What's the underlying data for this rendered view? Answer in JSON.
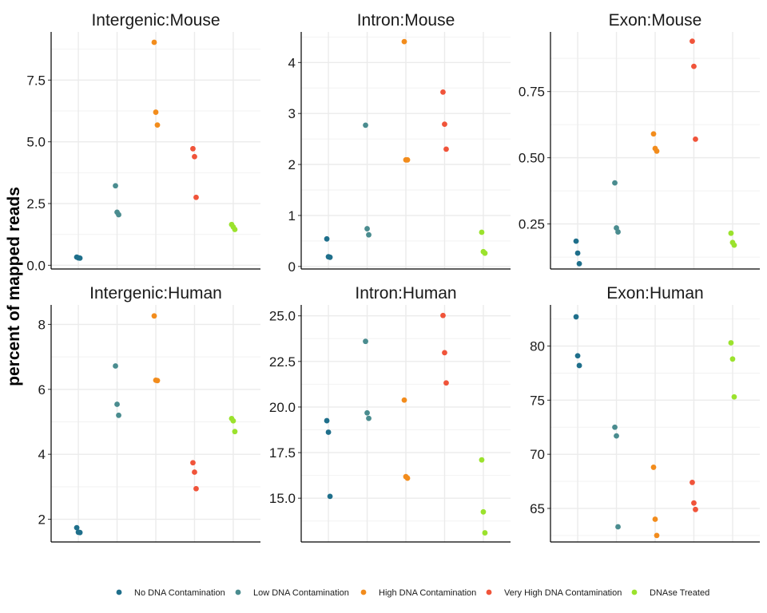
{
  "chart_data": {
    "type": "scatter",
    "ylabel": "percent of mapped reads",
    "legend": {
      "position": "bottom",
      "entries": [
        {
          "name": "No DNA Contamination",
          "color": "#1f6f8b"
        },
        {
          "name": "Low DNA Contamination",
          "color": "#4a8c8f"
        },
        {
          "name": "High DNA Contamination",
          "color": "#f28c1c"
        },
        {
          "name": "Very High DNA Contamination",
          "color": "#f0543a"
        },
        {
          "name": "DNAse Treated",
          "color": "#9be22d"
        }
      ]
    },
    "grid": true,
    "panels": [
      {
        "title": "Intergenic:Mouse",
        "ylim": [
          -0.15,
          9.45
        ],
        "yticks": [
          0.0,
          2.5,
          5.0,
          7.5
        ],
        "yticklabels": [
          "0.0",
          "2.5",
          "5.0",
          "7.5"
        ],
        "series": [
          {
            "name": "No DNA Contamination",
            "values": [
              0.33,
              0.3,
              0.29
            ]
          },
          {
            "name": "Low DNA Contamination",
            "values": [
              3.22,
              2.15,
              2.05
            ]
          },
          {
            "name": "High DNA Contamination",
            "values": [
              9.03,
              6.2,
              5.68
            ]
          },
          {
            "name": "Very High DNA Contamination",
            "values": [
              4.72,
              4.4,
              2.75
            ]
          },
          {
            "name": "DNAse Treated",
            "values": [
              1.65,
              1.55,
              1.45
            ]
          }
        ]
      },
      {
        "title": "Intron:Mouse",
        "ylim": [
          -0.05,
          4.6
        ],
        "yticks": [
          0,
          1,
          2,
          3,
          4
        ],
        "yticklabels": [
          "0",
          "1",
          "2",
          "3",
          "4"
        ],
        "series": [
          {
            "name": "No DNA Contamination",
            "values": [
              0.54,
              0.19,
              0.18
            ]
          },
          {
            "name": "Low DNA Contamination",
            "values": [
              2.77,
              0.74,
              0.62
            ]
          },
          {
            "name": "High DNA Contamination",
            "values": [
              4.41,
              2.09,
              2.09
            ]
          },
          {
            "name": "Very High DNA Contamination",
            "values": [
              3.42,
              2.79,
              2.3
            ]
          },
          {
            "name": "DNAse Treated",
            "values": [
              0.67,
              0.29,
              0.26
            ]
          }
        ]
      },
      {
        "title": "Exon:Mouse",
        "ylim": [
          0.08,
          0.975
        ],
        "yticks": [
          0.25,
          0.5,
          0.75
        ],
        "yticklabels": [
          "0.25",
          "0.50",
          "0.75"
        ],
        "series": [
          {
            "name": "No DNA Contamination",
            "values": [
              0.185,
              0.14,
              0.1
            ]
          },
          {
            "name": "Low DNA Contamination",
            "values": [
              0.405,
              0.235,
              0.22
            ]
          },
          {
            "name": "High DNA Contamination",
            "values": [
              0.59,
              0.535,
              0.525
            ]
          },
          {
            "name": "Very High DNA Contamination",
            "values": [
              0.94,
              0.845,
              0.57
            ]
          },
          {
            "name": "DNAse Treated",
            "values": [
              0.215,
              0.18,
              0.17
            ]
          }
        ]
      },
      {
        "title": "Intergenic:Human",
        "ylim": [
          1.3,
          8.6
        ],
        "yticks": [
          2,
          4,
          6,
          8
        ],
        "yticklabels": [
          "2",
          "4",
          "6",
          "8"
        ],
        "series": [
          {
            "name": "No DNA Contamination",
            "values": [
              1.74,
              1.6,
              1.59
            ]
          },
          {
            "name": "Low DNA Contamination",
            "values": [
              6.72,
              5.54,
              5.2
            ]
          },
          {
            "name": "High DNA Contamination",
            "values": [
              8.26,
              6.28,
              6.27
            ]
          },
          {
            "name": "Very High DNA Contamination",
            "values": [
              3.74,
              3.45,
              2.94
            ]
          },
          {
            "name": "DNAse Treated",
            "values": [
              5.1,
              5.03,
              4.7
            ]
          }
        ]
      },
      {
        "title": "Intron:Human",
        "ylim": [
          12.6,
          25.6
        ],
        "yticks": [
          15.0,
          17.5,
          20.0,
          22.5,
          25.0
        ],
        "yticklabels": [
          "15.0",
          "17.5",
          "20.0",
          "22.5",
          "25.0"
        ],
        "series": [
          {
            "name": "No DNA Contamination",
            "values": [
              19.25,
              18.62,
              15.1
            ]
          },
          {
            "name": "Low DNA Contamination",
            "values": [
              23.6,
              19.68,
              19.38
            ]
          },
          {
            "name": "High DNA Contamination",
            "values": [
              20.38,
              16.18,
              16.1
            ]
          },
          {
            "name": "Very High DNA Contamination",
            "values": [
              25.02,
              22.98,
              21.32
            ]
          },
          {
            "name": "DNAse Treated",
            "values": [
              17.1,
              14.25,
              13.1
            ]
          }
        ]
      },
      {
        "title": "Exon:Human",
        "ylim": [
          61.9,
          83.8
        ],
        "yticks": [
          65,
          70,
          75,
          80
        ],
        "yticklabels": [
          "65",
          "70",
          "75",
          "80"
        ],
        "series": [
          {
            "name": "No DNA Contamination",
            "values": [
              82.7,
              79.1,
              78.2
            ]
          },
          {
            "name": "Low DNA Contamination",
            "values": [
              72.5,
              71.7,
              63.3
            ]
          },
          {
            "name": "High DNA Contamination",
            "values": [
              68.8,
              64.0,
              62.5
            ]
          },
          {
            "name": "Very High DNA Contamination",
            "values": [
              67.4,
              65.5,
              64.9
            ]
          },
          {
            "name": "DNAse Treated",
            "values": [
              80.3,
              78.8,
              75.3
            ]
          }
        ]
      }
    ]
  }
}
